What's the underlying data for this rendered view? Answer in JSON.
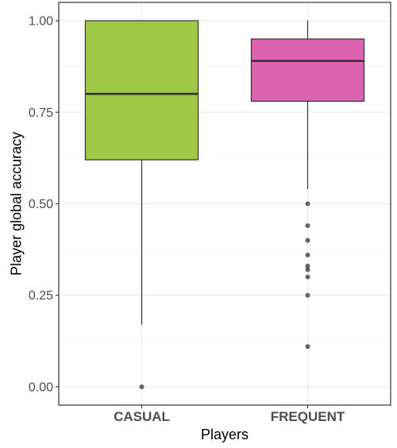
{
  "chart_data": {
    "type": "box",
    "title": "",
    "xlabel": "Players",
    "ylabel": "Player global accuracy",
    "ylim": [
      -0.05,
      1.05
    ],
    "yticks": [
      0.0,
      0.25,
      0.5,
      0.75,
      1.0
    ],
    "ytick_labels": [
      "0.00",
      "0.25",
      "0.50",
      "0.75",
      "1.00"
    ],
    "categories": [
      "CASUAL",
      "FREQUENT"
    ],
    "grid": true,
    "legend": "none",
    "boxes": [
      {
        "category": "CASUAL",
        "color": "#9AC63F",
        "whisker_low": 0.17,
        "q1": 0.62,
        "median": 0.8,
        "q3": 1.0,
        "whisker_high": 1.0,
        "outliers": [
          0.0
        ]
      },
      {
        "category": "FREQUENT",
        "color": "#DB5BAE",
        "whisker_low": 0.54,
        "q1": 0.78,
        "median": 0.89,
        "q3": 0.95,
        "whisker_high": 1.0,
        "outliers": [
          0.5,
          0.44,
          0.4,
          0.36,
          0.33,
          0.32,
          0.3,
          0.25,
          0.11
        ]
      }
    ]
  }
}
